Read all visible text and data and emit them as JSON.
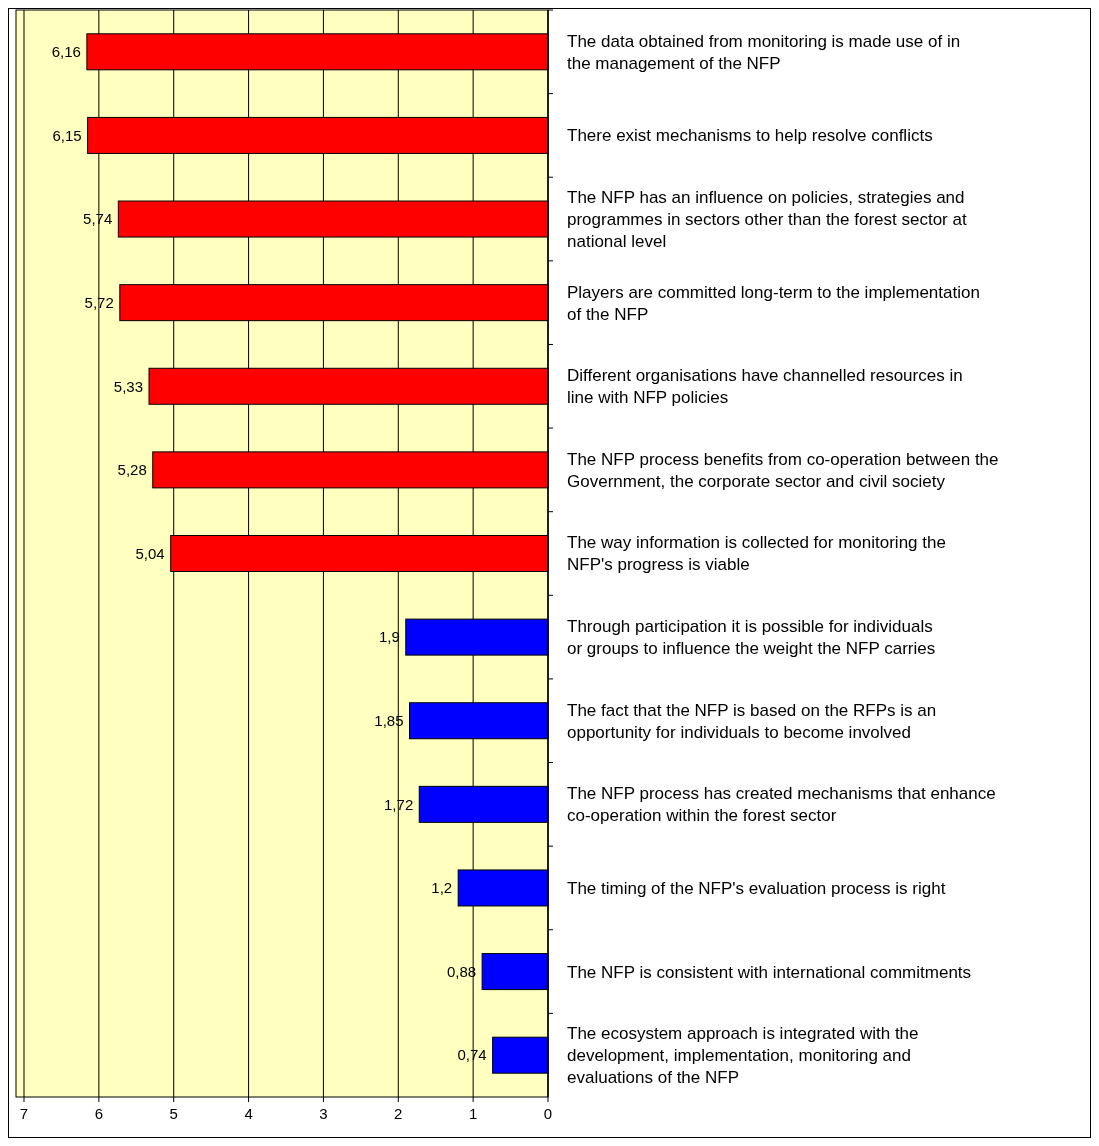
{
  "chart_data": {
    "type": "bar",
    "orientation": "horizontal",
    "categories": [
      "The data obtained from monitoring is made use of in the management of the NFP",
      "There exist mechanisms to help resolve conflicts",
      "The NFP has an influence on policies, strategies and programmes in sectors other than the forest sector at national level",
      "Players are committed long-term to the implementation of the NFP",
      "Different organisations have channelled resources in line with NFP policies",
      "The NFP process benefits from co-operation between the Government, the corporate sector and civil society",
      "The way information is collected for monitoring the NFP's progress is viable",
      "Through participation it is possible for individuals or groups to influence the weight the NFP carries",
      "The fact that the NFP is based on the RFPs is an opportunity for individuals to become involved",
      "The NFP process has created mechanisms that enhance co-operation within the forest sector",
      "The timing of the NFP's evaluation process is right",
      "The NFP is consistent with international commitments",
      "The ecosystem approach is integrated with the development, implementation, monitoring and evaluations of the NFP"
    ],
    "values": [
      6.16,
      6.15,
      5.74,
      5.72,
      5.33,
      5.28,
      5.04,
      1.9,
      1.85,
      1.72,
      1.2,
      0.88,
      0.74
    ],
    "value_labels": [
      "6,16",
      "6,15",
      "5,74",
      "5,72",
      "5,33",
      "5,28",
      "5,04",
      "1,9",
      "1,85",
      "1,72",
      "1,2",
      "0,88",
      "0,74"
    ],
    "colors": [
      "#ff0000",
      "#ff0000",
      "#ff0000",
      "#ff0000",
      "#ff0000",
      "#ff0000",
      "#ff0000",
      "#0000ff",
      "#0000ff",
      "#0000ff",
      "#0000ff",
      "#0000ff",
      "#0000ff"
    ],
    "xlim": [
      7,
      0
    ],
    "xticks": [
      7,
      6,
      5,
      4,
      3,
      2,
      1,
      0
    ],
    "grid": "x"
  }
}
